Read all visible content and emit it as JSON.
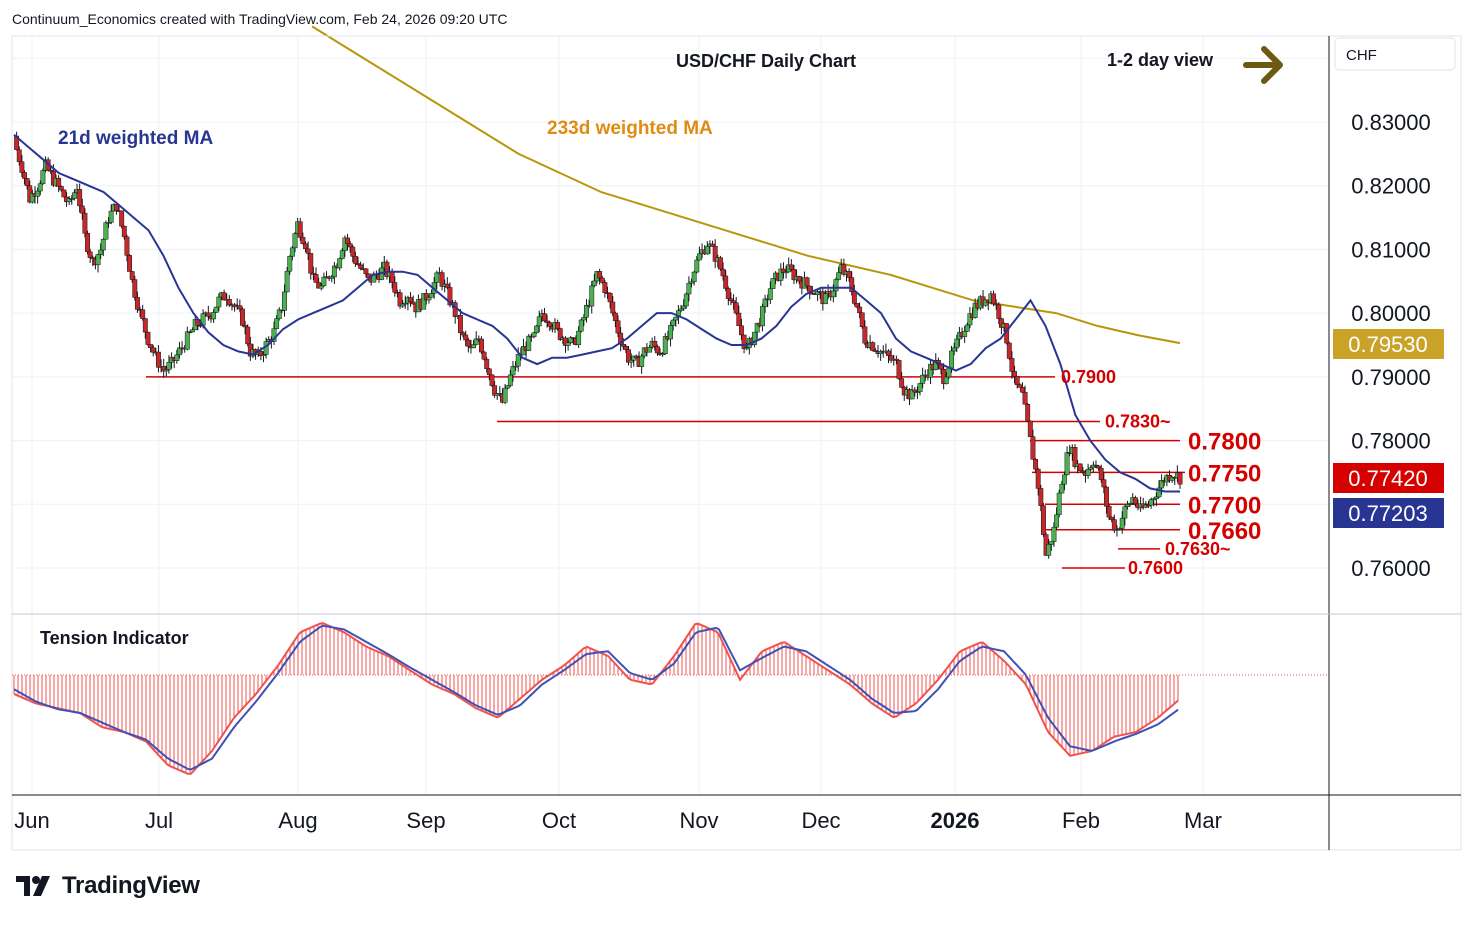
{
  "header": {
    "attribution": "Continuum_Economics created with TradingView.com, Feb 24, 2026 09:20 UTC"
  },
  "brand": {
    "name": "TradingView"
  },
  "colors": {
    "candle_up": "#4caf50",
    "candle_down": "#c62828",
    "wick": "#131722",
    "ma21": "#283593",
    "ma233": "#b8960c",
    "support": "#d50000",
    "view_arrow": "#6d5a12",
    "osc_red": "#ef5350",
    "osc_blue": "#3f51b5"
  },
  "chart_data": {
    "type": "candlestick",
    "title": "USD/CHF Daily Chart",
    "view_label": "1-2 day view",
    "view_icon": "arrow-right-icon",
    "currency": "CHF",
    "ylim": [
      0.753,
      0.842
    ],
    "y_ticks": [
      "0.83000",
      "0.82000",
      "0.81000",
      "0.80000",
      "0.79000",
      "0.78000",
      "0.76000"
    ],
    "y_tick_values": [
      0.83,
      0.82,
      0.81,
      0.8,
      0.79,
      0.78,
      0.76
    ],
    "x_labels": [
      "Jun",
      "Jul",
      "Aug",
      "Sep",
      "Oct",
      "Nov",
      "Dec",
      "2026",
      "Feb",
      "Mar"
    ],
    "ma_labels": {
      "ma21": "21d weighted MA",
      "ma233": "233d weighted MA"
    },
    "price_badges": [
      {
        "value": "0.79530",
        "price": 0.7953,
        "color": "#c9a227",
        "text_color": "#ffffff"
      },
      {
        "value": "0.77420",
        "price": 0.7742,
        "color": "#d50000",
        "text_color": "#ffffff"
      },
      {
        "value": "0.77203",
        "price": 0.77203,
        "color": "#283593",
        "text_color": "#ffffff"
      }
    ],
    "levels": [
      {
        "label": "0.7900",
        "price": 0.79,
        "bold": false
      },
      {
        "label": "0.7830~",
        "price": 0.783,
        "bold": false
      },
      {
        "label": "0.7800",
        "price": 0.78,
        "bold": true
      },
      {
        "label": "0.7750",
        "price": 0.775,
        "bold": true
      },
      {
        "label": "0.7700",
        "price": 0.77,
        "bold": true
      },
      {
        "label": "0.7660",
        "price": 0.766,
        "bold": true
      },
      {
        "label": "0.7630~",
        "price": 0.763,
        "bold": false
      },
      {
        "label": "0.7600",
        "price": 0.76,
        "bold": false
      }
    ],
    "close_path": [
      0.827,
      0.823,
      0.818,
      0.82,
      0.823,
      0.821,
      0.819,
      0.817,
      0.82,
      0.812,
      0.808,
      0.81,
      0.815,
      0.817,
      0.812,
      0.805,
      0.8,
      0.796,
      0.793,
      0.791,
      0.792,
      0.794,
      0.796,
      0.798,
      0.799,
      0.8,
      0.802,
      0.803,
      0.801,
      0.799,
      0.794,
      0.793,
      0.795,
      0.797,
      0.801,
      0.809,
      0.814,
      0.811,
      0.805,
      0.804,
      0.806,
      0.808,
      0.812,
      0.809,
      0.807,
      0.805,
      0.806,
      0.807,
      0.805,
      0.802,
      0.803,
      0.801,
      0.802,
      0.804,
      0.806,
      0.803,
      0.8,
      0.796,
      0.794,
      0.796,
      0.792,
      0.788,
      0.786,
      0.79,
      0.793,
      0.795,
      0.796,
      0.8,
      0.799,
      0.797,
      0.796,
      0.795,
      0.798,
      0.802,
      0.806,
      0.804,
      0.8,
      0.796,
      0.793,
      0.792,
      0.794,
      0.795,
      0.794,
      0.796,
      0.799,
      0.802,
      0.806,
      0.809,
      0.811,
      0.809,
      0.806,
      0.802,
      0.798,
      0.794,
      0.797,
      0.8,
      0.804,
      0.806,
      0.807,
      0.806,
      0.805,
      0.804,
      0.803,
      0.802,
      0.804,
      0.807,
      0.805,
      0.801,
      0.796,
      0.795,
      0.794,
      0.793,
      0.792,
      0.788,
      0.787,
      0.789,
      0.791,
      0.792,
      0.79,
      0.793,
      0.796,
      0.799,
      0.801,
      0.802,
      0.803,
      0.8,
      0.796,
      0.789,
      0.787,
      0.78,
      0.773,
      0.762,
      0.766,
      0.774,
      0.779,
      0.776,
      0.775,
      0.777,
      0.774,
      0.768,
      0.766,
      0.769,
      0.771,
      0.769,
      0.77,
      0.772,
      0.774,
      0.775,
      0.7742
    ],
    "ma21_path": [
      0.828,
      0.826,
      0.824,
      0.822,
      0.821,
      0.82,
      0.819,
      0.817,
      0.815,
      0.813,
      0.809,
      0.804,
      0.8,
      0.797,
      0.795,
      0.794,
      0.7935,
      0.795,
      0.7975,
      0.799,
      0.8,
      0.801,
      0.802,
      0.804,
      0.806,
      0.8065,
      0.8065,
      0.806,
      0.804,
      0.802,
      0.8,
      0.799,
      0.798,
      0.796,
      0.793,
      0.792,
      0.793,
      0.793,
      0.7935,
      0.794,
      0.7945,
      0.796,
      0.798,
      0.8,
      0.8,
      0.799,
      0.7975,
      0.796,
      0.795,
      0.795,
      0.796,
      0.798,
      0.801,
      0.803,
      0.804,
      0.804,
      0.804,
      0.802,
      0.8,
      0.796,
      0.794,
      0.793,
      0.792,
      0.791,
      0.792,
      0.7945,
      0.796,
      0.799,
      0.802,
      0.798,
      0.792,
      0.784,
      0.78,
      0.777,
      0.775,
      0.774,
      0.7725,
      0.772,
      0.772
    ],
    "ma233_path": [
      0.845,
      0.841,
      0.837,
      0.833,
      0.829,
      0.825,
      0.822,
      0.819,
      0.817,
      0.815,
      0.813,
      0.811,
      0.809,
      0.8075,
      0.806,
      0.804,
      0.802,
      0.801,
      0.8,
      0.798,
      0.7965,
      0.7953
    ],
    "tension_indicator": {
      "label": "Tension Indicator",
      "osc_red": [
        -0.2,
        -0.3,
        -0.35,
        -0.4,
        -0.55,
        -0.6,
        -0.7,
        -0.95,
        -1.05,
        -0.8,
        -0.45,
        -0.2,
        0.1,
        0.45,
        0.55,
        0.45,
        0.3,
        0.2,
        0.05,
        -0.1,
        -0.2,
        -0.35,
        -0.45,
        -0.25,
        -0.05,
        0.1,
        0.3,
        0.2,
        -0.05,
        -0.1,
        0.2,
        0.55,
        0.45,
        -0.05,
        0.25,
        0.35,
        0.2,
        0.05,
        -0.1,
        -0.3,
        -0.45,
        -0.3,
        -0.05,
        0.25,
        0.35,
        0.15,
        -0.1,
        -0.6,
        -0.85,
        -0.8,
        -0.65,
        -0.6,
        -0.45,
        -0.25
      ],
      "osc_blue": [
        -0.15,
        -0.28,
        -0.36,
        -0.4,
        -0.5,
        -0.6,
        -0.68,
        -0.88,
        -1.0,
        -0.88,
        -0.55,
        -0.28,
        0.02,
        0.35,
        0.52,
        0.48,
        0.35,
        0.22,
        0.08,
        -0.05,
        -0.18,
        -0.32,
        -0.42,
        -0.32,
        -0.1,
        0.05,
        0.22,
        0.25,
        0.02,
        -0.05,
        0.12,
        0.45,
        0.5,
        0.05,
        0.18,
        0.3,
        0.25,
        0.1,
        -0.05,
        -0.25,
        -0.4,
        -0.38,
        -0.15,
        0.15,
        0.3,
        0.25,
        0.0,
        -0.45,
        -0.75,
        -0.8,
        -0.7,
        -0.62,
        -0.52,
        -0.35
      ]
    }
  }
}
